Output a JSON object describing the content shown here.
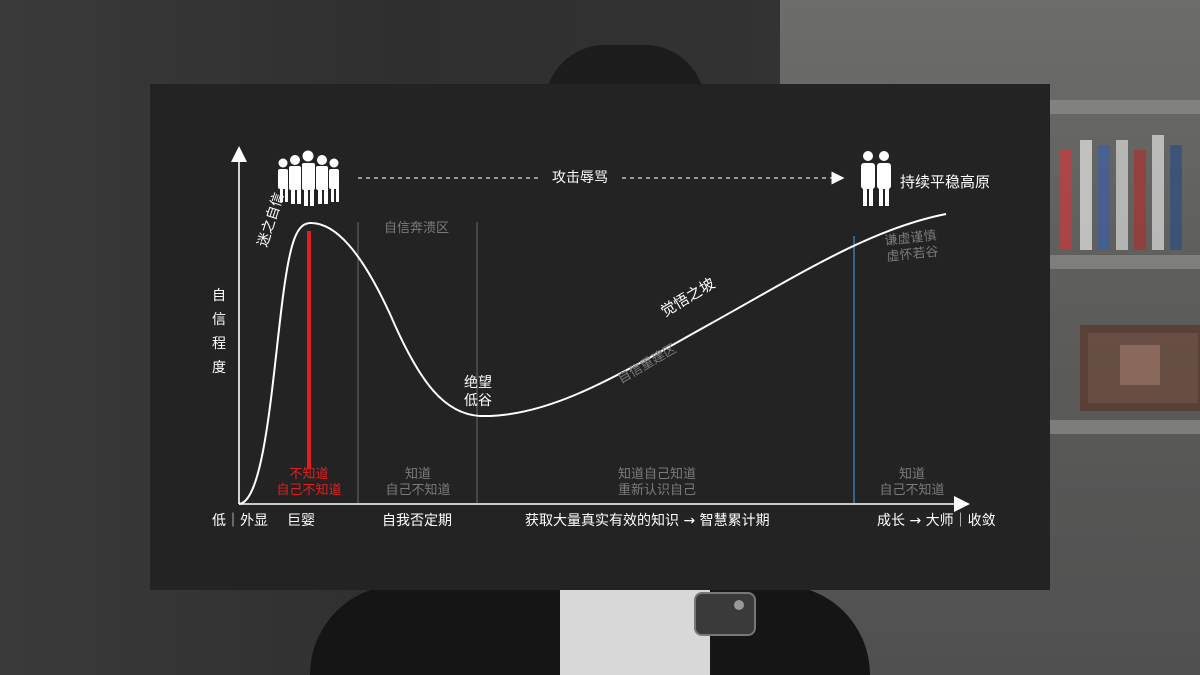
{
  "diagram": {
    "y_axis_label": "自信程度",
    "top": {
      "arrow_label": "攻击辱骂",
      "plateau_label": "持续平稳高原",
      "crowd_icon": "crowd-icon",
      "pair_icon": "two-people-icon"
    },
    "curve_labels": {
      "peak": "迷之自信",
      "collapse_zone": "自信奔溃区",
      "valley_line1": "绝望",
      "valley_line2": "低谷",
      "slope": "觉悟之坡",
      "rebuild_zone": "自信重建区",
      "humble_line1": "谦虚谨慎",
      "humble_line2": "虚怀若谷"
    },
    "zone_states": {
      "red_line1": "不知道",
      "red_line2": "自己不知道",
      "collapse_line1": "知道",
      "collapse_line2": "自己不知道",
      "rebuild_line1": "知道自己知道",
      "rebuild_line2": "重新认识自己",
      "plateau_line1": "知道",
      "plateau_line2": "自己不知道"
    },
    "x_axis_labels": {
      "start": "低｜外显",
      "giant_baby": "巨婴",
      "self_denial": "自我否定期",
      "knowledge": "获取大量真实有效的知识 → 智慧累计期",
      "end": "成长 → 大师｜收敛"
    },
    "colors": {
      "background": "#232323",
      "curve": "#ffffff",
      "red_bar": "#e21f1f",
      "gray_divider": "#6a6a6a",
      "blue_divider": "#3f8fcf",
      "gray_text": "#7a7a7a"
    }
  }
}
